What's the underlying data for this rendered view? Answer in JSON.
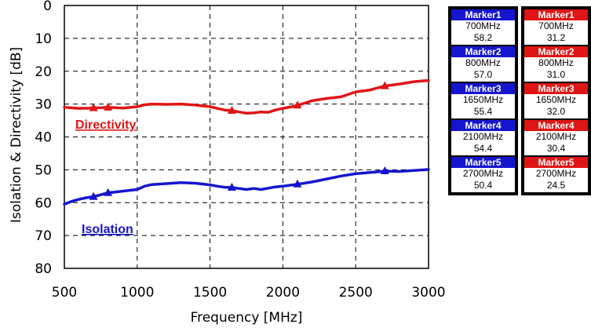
{
  "colors": {
    "isolation": "#1515cf",
    "directivity": "#e01515"
  },
  "chart_data": {
    "type": "line",
    "title": "",
    "xlabel": "Frequency [MHz]",
    "ylabel": "Isolation & Directivity [dB]",
    "xlim": [
      500,
      3000
    ],
    "ylim": [
      0,
      80
    ],
    "y_reversed": true,
    "grid": true,
    "xticks": [
      "500",
      "1000",
      "1500",
      "2000",
      "2500",
      "3000"
    ],
    "yticks": [
      "0",
      "10",
      "20",
      "30",
      "40",
      "50",
      "60",
      "70",
      "80"
    ],
    "series": [
      {
        "name": "Directivity",
        "color": "#e01515",
        "x": [
          500,
          600,
          700,
          800,
          900,
          1000,
          1050,
          1100,
          1200,
          1300,
          1400,
          1500,
          1550,
          1600,
          1650,
          1700,
          1750,
          1800,
          1850,
          1900,
          1950,
          2000,
          2050,
          2100,
          2200,
          2300,
          2400,
          2500,
          2600,
          2700,
          2800,
          2900,
          3000
        ],
        "y": [
          31.0,
          31.3,
          31.2,
          31.0,
          31.2,
          30.8,
          30.2,
          30.0,
          30.1,
          30.0,
          30.3,
          30.8,
          31.3,
          31.8,
          32.0,
          32.4,
          32.8,
          32.7,
          32.4,
          32.5,
          31.8,
          31.3,
          30.9,
          30.4,
          29.0,
          28.3,
          27.8,
          26.3,
          25.7,
          24.5,
          23.9,
          23.2,
          22.8
        ]
      },
      {
        "name": "Isolation",
        "color": "#1515cf",
        "x": [
          500,
          550,
          600,
          650,
          700,
          800,
          900,
          1000,
          1050,
          1100,
          1200,
          1300,
          1400,
          1500,
          1550,
          1600,
          1650,
          1700,
          1750,
          1800,
          1850,
          1900,
          1950,
          2000,
          2100,
          2200,
          2300,
          2400,
          2500,
          2600,
          2700,
          2800,
          2900,
          3000
        ],
        "y": [
          60.5,
          59.6,
          59.0,
          58.5,
          58.2,
          57.0,
          56.5,
          56.0,
          55.0,
          54.5,
          54.2,
          53.9,
          54.1,
          54.6,
          55.0,
          55.3,
          55.4,
          55.7,
          56.0,
          55.7,
          56.0,
          55.6,
          55.2,
          55.0,
          54.4,
          53.7,
          52.8,
          51.9,
          51.2,
          50.8,
          50.4,
          50.5,
          50.2,
          49.9
        ]
      }
    ],
    "markers": [
      {
        "series": "Directivity",
        "x": [
          700,
          800,
          1650,
          2100,
          2700
        ],
        "y": [
          31.2,
          31.0,
          32.0,
          30.4,
          24.5
        ]
      },
      {
        "series": "Isolation",
        "x": [
          700,
          800,
          1650,
          2100,
          2700
        ],
        "y": [
          58.2,
          57.0,
          55.4,
          54.4,
          50.4
        ]
      }
    ]
  },
  "marker_tables": [
    {
      "series": "Isolation",
      "color": "#1515cf",
      "rows": [
        {
          "label": "Marker1",
          "freq": "700MHz",
          "value": "58.2"
        },
        {
          "label": "Marker2",
          "freq": "800MHz",
          "value": "57.0"
        },
        {
          "label": "Marker3",
          "freq": "1650MHz",
          "value": "55.4"
        },
        {
          "label": "Marker4",
          "freq": "2100MHz",
          "value": "54.4"
        },
        {
          "label": "Marker5",
          "freq": "2700MHz",
          "value": "50.4"
        }
      ]
    },
    {
      "series": "Directivity",
      "color": "#e01515",
      "rows": [
        {
          "label": "Marker1",
          "freq": "700MHz",
          "value": "31.2"
        },
        {
          "label": "Marker2",
          "freq": "800MHz",
          "value": "31.0"
        },
        {
          "label": "Marker3",
          "freq": "1650MHz",
          "value": "32.0"
        },
        {
          "label": "Marker4",
          "freq": "2100MHz",
          "value": "30.4"
        },
        {
          "label": "Marker5",
          "freq": "2700MHz",
          "value": "24.5"
        }
      ]
    }
  ]
}
